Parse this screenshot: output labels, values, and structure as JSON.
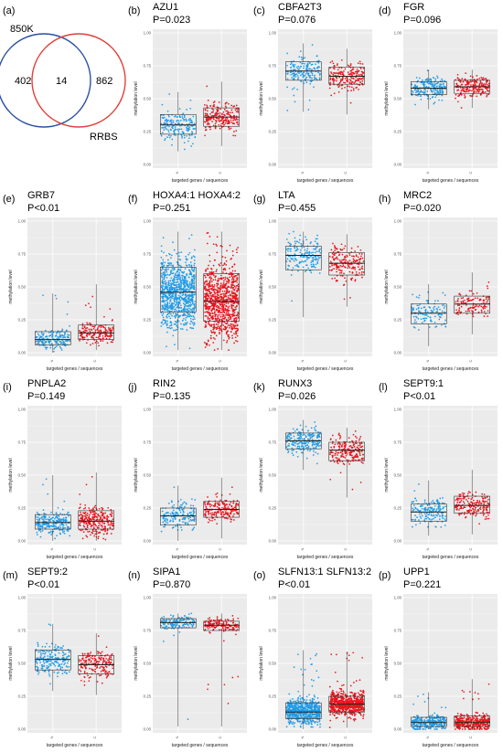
{
  "venn": {
    "panel": "(a)",
    "sets": [
      {
        "label": "850K",
        "only": "402",
        "color": "#2b4fa3"
      },
      {
        "label": "RRBS",
        "only": "862",
        "color": "#e0403a"
      }
    ],
    "overlap": "14"
  },
  "shared": {
    "xlabel": "targeted genes / sequences",
    "ylabel": "methylation level",
    "yticks": [
      "0.00",
      "0.25",
      "0.50",
      "0.75",
      "1.00"
    ],
    "xticks": [
      "N",
      "C"
    ],
    "colors": {
      "N": "#1e9be6",
      "C": "#e8141c",
      "bg": "#ebebeb",
      "grid": "#ffffff"
    }
  },
  "chart_data": [
    {
      "panel": "(b)",
      "title": "AZU1",
      "pvalue": "P=0.023",
      "type": "box",
      "series": [
        {
          "name": "N",
          "median": 0.3,
          "q1": 0.23,
          "q3": 0.38,
          "min": 0.1,
          "max": 0.55,
          "n": 180
        },
        {
          "name": "C",
          "median": 0.36,
          "q1": 0.29,
          "q3": 0.43,
          "min": 0.14,
          "max": 0.63,
          "n": 220
        }
      ]
    },
    {
      "panel": "(c)",
      "title": "CBFA2T3",
      "pvalue": "P=0.076",
      "type": "box",
      "series": [
        {
          "name": "N",
          "median": 0.71,
          "q1": 0.64,
          "q3": 0.78,
          "min": 0.4,
          "max": 0.92,
          "n": 180
        },
        {
          "name": "C",
          "median": 0.67,
          "q1": 0.61,
          "q3": 0.74,
          "min": 0.38,
          "max": 0.88,
          "n": 200
        }
      ]
    },
    {
      "panel": "(d)",
      "title": "FGR",
      "pvalue": "P=0.096",
      "type": "box",
      "series": [
        {
          "name": "N",
          "median": 0.58,
          "q1": 0.53,
          "q3": 0.63,
          "min": 0.42,
          "max": 0.72,
          "n": 220
        },
        {
          "name": "C",
          "median": 0.59,
          "q1": 0.54,
          "q3": 0.64,
          "min": 0.43,
          "max": 0.72,
          "n": 220
        }
      ]
    },
    {
      "panel": "(e)",
      "title": "GRB7",
      "pvalue": "P<0.01",
      "type": "box",
      "series": [
        {
          "name": "N",
          "median": 0.1,
          "q1": 0.06,
          "q3": 0.16,
          "min": 0.0,
          "max": 0.45,
          "n": 180
        },
        {
          "name": "C",
          "median": 0.15,
          "q1": 0.1,
          "q3": 0.21,
          "min": 0.02,
          "max": 0.52,
          "n": 180
        }
      ]
    },
    {
      "panel": "(f)",
      "title": "HOXA4:1 HOXA4:2",
      "pvalue": "P=0.251",
      "type": "box",
      "series": [
        {
          "name": "N",
          "median": 0.46,
          "q1": 0.31,
          "q3": 0.65,
          "min": 0.02,
          "max": 0.92,
          "n": 900
        },
        {
          "name": "C",
          "median": 0.39,
          "q1": 0.24,
          "q3": 0.6,
          "min": 0.02,
          "max": 0.92,
          "n": 900
        }
      ]
    },
    {
      "panel": "(g)",
      "title": "LTA",
      "pvalue": "P=0.455",
      "type": "box",
      "series": [
        {
          "name": "N",
          "median": 0.74,
          "q1": 0.63,
          "q3": 0.81,
          "min": 0.27,
          "max": 0.92,
          "n": 180
        },
        {
          "name": "C",
          "median": 0.68,
          "q1": 0.59,
          "q3": 0.76,
          "min": 0.35,
          "max": 0.9,
          "n": 200
        }
      ]
    },
    {
      "panel": "(h)",
      "title": "MRC2",
      "pvalue": "P=0.020",
      "type": "box",
      "series": [
        {
          "name": "N",
          "median": 0.3,
          "q1": 0.22,
          "q3": 0.37,
          "min": 0.05,
          "max": 0.52,
          "n": 120
        },
        {
          "name": "C",
          "median": 0.37,
          "q1": 0.3,
          "q3": 0.43,
          "min": 0.14,
          "max": 0.61,
          "n": 120
        }
      ]
    },
    {
      "panel": "(i)",
      "title": "PNPLA2",
      "pvalue": "P=0.149",
      "type": "box",
      "series": [
        {
          "name": "N",
          "median": 0.14,
          "q1": 0.09,
          "q3": 0.2,
          "min": 0.0,
          "max": 0.5,
          "n": 250
        },
        {
          "name": "C",
          "median": 0.15,
          "q1": 0.09,
          "q3": 0.23,
          "min": 0.0,
          "max": 0.52,
          "n": 270
        }
      ]
    },
    {
      "panel": "(j)",
      "title": "RIN2",
      "pvalue": "P=0.135",
      "type": "box",
      "series": [
        {
          "name": "N",
          "median": 0.19,
          "q1": 0.12,
          "q3": 0.25,
          "min": 0.0,
          "max": 0.42,
          "n": 170
        },
        {
          "name": "C",
          "median": 0.24,
          "q1": 0.18,
          "q3": 0.3,
          "min": 0.02,
          "max": 0.48,
          "n": 200
        }
      ]
    },
    {
      "panel": "(k)",
      "title": "RUNX3",
      "pvalue": "P=0.026",
      "type": "box",
      "series": [
        {
          "name": "N",
          "median": 0.76,
          "q1": 0.7,
          "q3": 0.82,
          "min": 0.54,
          "max": 0.92,
          "n": 220
        },
        {
          "name": "C",
          "median": 0.69,
          "q1": 0.61,
          "q3": 0.75,
          "min": 0.33,
          "max": 0.86,
          "n": 220
        }
      ]
    },
    {
      "panel": "(l)",
      "title": "SEPT9:1",
      "pvalue": "P<0.01",
      "type": "box",
      "series": [
        {
          "name": "N",
          "median": 0.22,
          "q1": 0.15,
          "q3": 0.28,
          "min": 0.04,
          "max": 0.46,
          "n": 170
        },
        {
          "name": "C",
          "median": 0.27,
          "q1": 0.21,
          "q3": 0.34,
          "min": 0.05,
          "max": 0.54,
          "n": 200
        }
      ]
    },
    {
      "panel": "(m)",
      "title": "SEPT9:2",
      "pvalue": "P<0.01",
      "type": "box",
      "series": [
        {
          "name": "N",
          "median": 0.53,
          "q1": 0.45,
          "q3": 0.6,
          "min": 0.29,
          "max": 0.8,
          "n": 200
        },
        {
          "name": "C",
          "median": 0.49,
          "q1": 0.42,
          "q3": 0.56,
          "min": 0.26,
          "max": 0.73,
          "n": 200
        }
      ]
    },
    {
      "panel": "(n)",
      "title": "SIPA1",
      "pvalue": "P=0.870",
      "type": "box",
      "series": [
        {
          "name": "N",
          "median": 0.81,
          "q1": 0.77,
          "q3": 0.84,
          "min": 0.02,
          "max": 0.88,
          "n": 150
        },
        {
          "name": "C",
          "median": 0.79,
          "q1": 0.75,
          "q3": 0.82,
          "min": 0.02,
          "max": 0.88,
          "n": 150
        }
      ]
    },
    {
      "panel": "(o)",
      "title": "SLFN13:1 SLFN13:2",
      "pvalue": "P<0.01",
      "type": "box",
      "series": [
        {
          "name": "N",
          "median": 0.13,
          "q1": 0.08,
          "q3": 0.2,
          "min": 0.0,
          "max": 0.6,
          "n": 700
        },
        {
          "name": "C",
          "median": 0.19,
          "q1": 0.13,
          "q3": 0.25,
          "min": 0.01,
          "max": 0.59,
          "n": 700
        }
      ]
    },
    {
      "panel": "(p)",
      "title": "UPP1",
      "pvalue": "P=0.221",
      "type": "box",
      "series": [
        {
          "name": "N",
          "median": 0.05,
          "q1": 0.02,
          "q3": 0.09,
          "min": 0.0,
          "max": 0.28,
          "n": 300
        },
        {
          "name": "C",
          "median": 0.05,
          "q1": 0.02,
          "q3": 0.1,
          "min": 0.0,
          "max": 0.38,
          "n": 400
        }
      ]
    }
  ]
}
